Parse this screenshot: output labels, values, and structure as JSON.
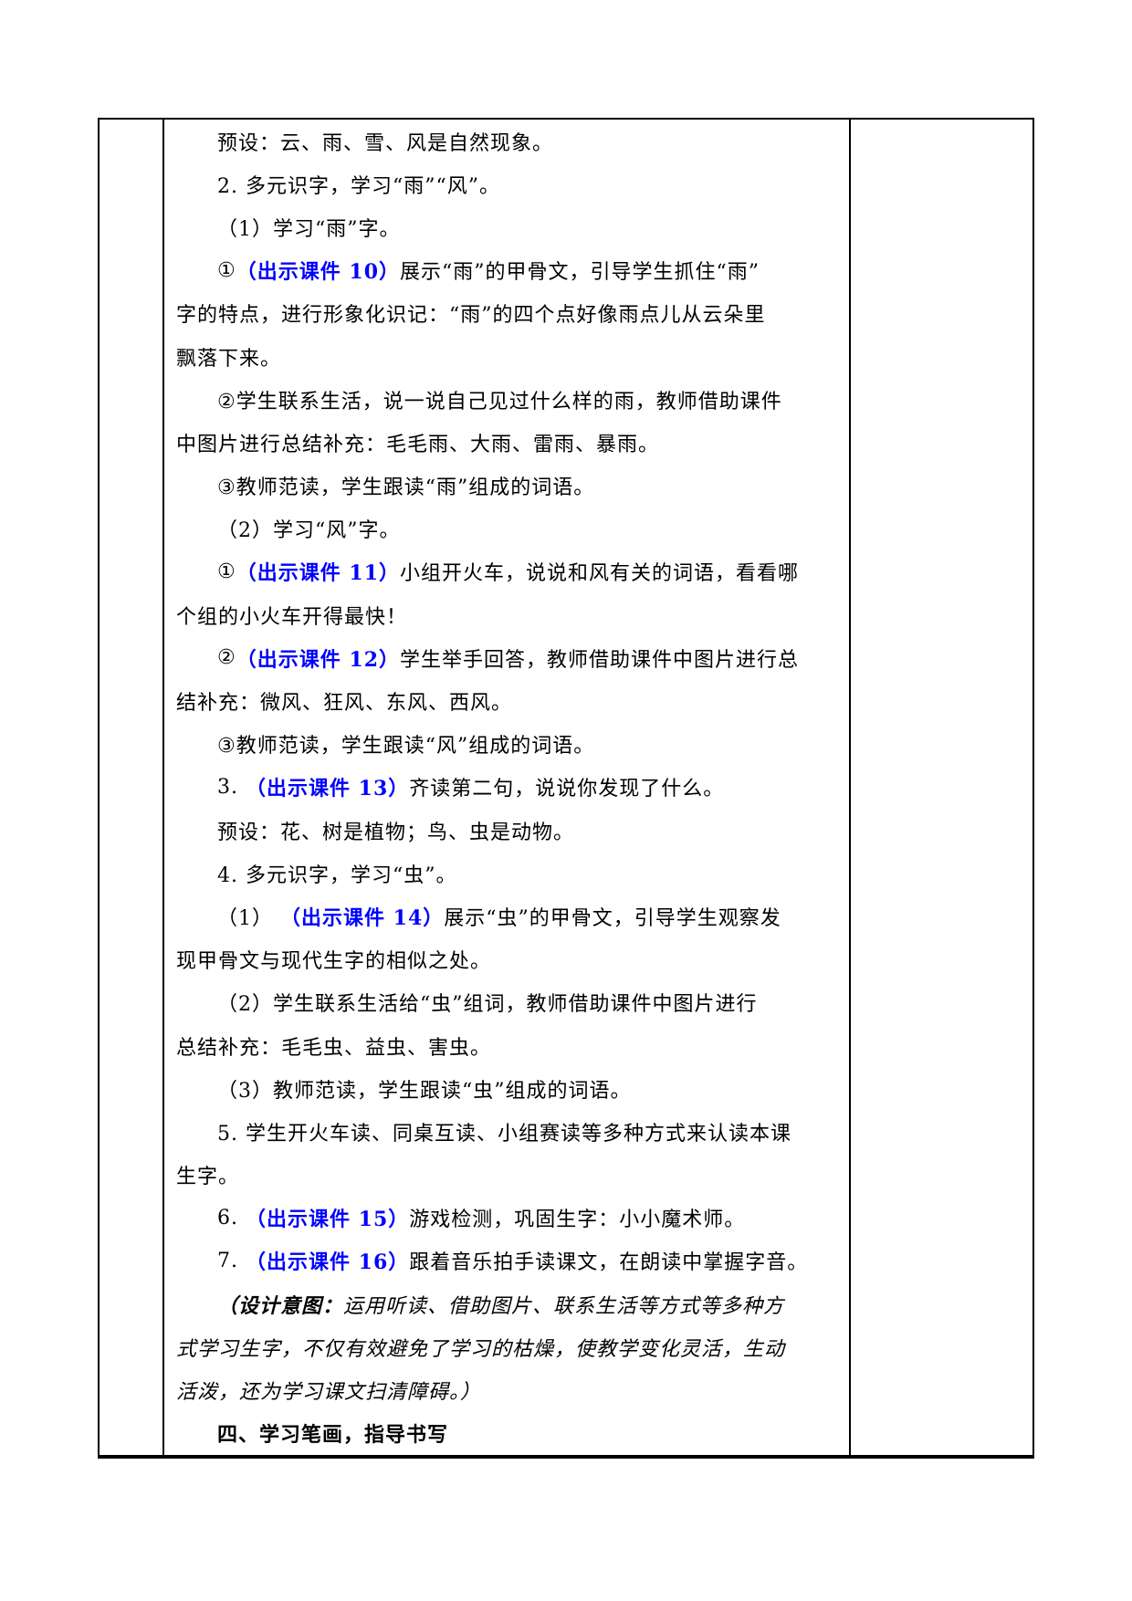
{
  "colors": {
    "page_background": "#ffffff",
    "text": "#000000",
    "accent_blue": "#0000FF",
    "table_border": "#000000"
  },
  "table": {
    "left_column_content": "",
    "right_column_content": "",
    "content_lines": [
      {
        "indent": true,
        "segments": [
          {
            "text": "预设：云、雨、雪、风是自然现象。",
            "style": "normal"
          }
        ]
      },
      {
        "indent": true,
        "segments": [
          {
            "text": "2. 多元识字，学习“雨”“风”。",
            "style": "normal"
          }
        ]
      },
      {
        "indent": true,
        "segments": [
          {
            "text": "（1）学习“雨”字。",
            "style": "normal"
          }
        ]
      },
      {
        "indent": true,
        "segments": [
          {
            "text": "①",
            "style": "normal"
          },
          {
            "text": "（出示课件 10）",
            "style": "blue-bold"
          },
          {
            "text": "展示“雨”的甲骨文，引导学生抓住“雨”",
            "style": "normal"
          }
        ]
      },
      {
        "indent": false,
        "segments": [
          {
            "text": "字的特点，进行形象化识记：“雨”的四个点好像雨点儿从云朵里",
            "style": "normal"
          }
        ]
      },
      {
        "indent": false,
        "segments": [
          {
            "text": "飘落下来。",
            "style": "normal"
          }
        ]
      },
      {
        "indent": true,
        "segments": [
          {
            "text": "②学生联系生活，说一说自己见过什么样的雨，教师借助课件",
            "style": "normal"
          }
        ]
      },
      {
        "indent": false,
        "segments": [
          {
            "text": "中图片进行总结补充：毛毛雨、大雨、雷雨、暴雨。",
            "style": "normal"
          }
        ]
      },
      {
        "indent": true,
        "segments": [
          {
            "text": "③教师范读，学生跟读“雨”组成的词语。",
            "style": "normal"
          }
        ]
      },
      {
        "indent": true,
        "segments": [
          {
            "text": "（2）学习“风”字。",
            "style": "normal"
          }
        ]
      },
      {
        "indent": true,
        "segments": [
          {
            "text": "①",
            "style": "normal"
          },
          {
            "text": "（出示课件 11）",
            "style": "blue-bold"
          },
          {
            "text": "小组开火车，说说和风有关的词语，看看哪",
            "style": "normal"
          }
        ]
      },
      {
        "indent": false,
        "segments": [
          {
            "text": "个组的小火车开得最快！",
            "style": "normal"
          }
        ]
      },
      {
        "indent": true,
        "segments": [
          {
            "text": "②",
            "style": "normal"
          },
          {
            "text": "（出示课件 12）",
            "style": "blue-bold"
          },
          {
            "text": "学生举手回答，教师借助课件中图片进行总",
            "style": "normal"
          }
        ]
      },
      {
        "indent": false,
        "segments": [
          {
            "text": "结补充：微风、狂风、东风、西风。",
            "style": "normal"
          }
        ]
      },
      {
        "indent": true,
        "segments": [
          {
            "text": "③教师范读，学生跟读“风”组成的词语。",
            "style": "normal"
          }
        ]
      },
      {
        "indent": true,
        "segments": [
          {
            "text": "3. ",
            "style": "normal"
          },
          {
            "text": "（出示课件 13）",
            "style": "blue-bold"
          },
          {
            "text": "齐读第二句，说说你发现了什么。",
            "style": "normal"
          }
        ]
      },
      {
        "indent": true,
        "segments": [
          {
            "text": "预设：花、树是植物；鸟、虫是动物。",
            "style": "normal"
          }
        ]
      },
      {
        "indent": true,
        "segments": [
          {
            "text": "4. 多元识字，学习“虫”。",
            "style": "normal"
          }
        ]
      },
      {
        "indent": true,
        "segments": [
          {
            "text": "（1） ",
            "style": "normal"
          },
          {
            "text": "（出示课件 14）",
            "style": "blue-bold"
          },
          {
            "text": "展示“虫”的甲骨文，引导学生观察发",
            "style": "normal"
          }
        ]
      },
      {
        "indent": false,
        "segments": [
          {
            "text": "现甲骨文与现代生字的相似之处。",
            "style": "normal"
          }
        ]
      },
      {
        "indent": true,
        "segments": [
          {
            "text": "（2）学生联系生活给“虫”组词，教师借助课件中图片进行",
            "style": "normal"
          }
        ]
      },
      {
        "indent": false,
        "segments": [
          {
            "text": "总结补充：毛毛虫、益虫、害虫。",
            "style": "normal"
          }
        ]
      },
      {
        "indent": true,
        "segments": [
          {
            "text": "（3）教师范读，学生跟读“虫”组成的词语。",
            "style": "normal"
          }
        ]
      },
      {
        "indent": true,
        "segments": [
          {
            "text": "5. 学生开火车读、同桌互读、小组赛读等多种方式来认读本课",
            "style": "normal"
          }
        ]
      },
      {
        "indent": false,
        "segments": [
          {
            "text": "生字。",
            "style": "normal"
          }
        ]
      },
      {
        "indent": true,
        "segments": [
          {
            "text": "6. ",
            "style": "normal"
          },
          {
            "text": "（出示课件 15）",
            "style": "blue-bold"
          },
          {
            "text": "游戏检测，巩固生字：小小魔术师。",
            "style": "normal"
          }
        ]
      },
      {
        "indent": true,
        "segments": [
          {
            "text": "7. ",
            "style": "normal"
          },
          {
            "text": "（出示课件 16）",
            "style": "blue-bold"
          },
          {
            "text": "跟着音乐拍手读课文，在朗读中掌握字音。",
            "style": "normal"
          }
        ]
      },
      {
        "indent": true,
        "segments": [
          {
            "text": "（设计意图：",
            "style": "kaiti-bold"
          },
          {
            "text": "运用听读、借助图片、联系生活等方式等多种方",
            "style": "kaiti"
          }
        ]
      },
      {
        "indent": false,
        "segments": [
          {
            "text": "式学习生字，不仅有效避免了学习的枯燥，使教学变化灵活，生动",
            "style": "kaiti"
          }
        ]
      },
      {
        "indent": false,
        "segments": [
          {
            "text": "活泼，还为学习课文扫清障碍。）",
            "style": "kaiti"
          }
        ]
      },
      {
        "indent": true,
        "segments": [
          {
            "text": "四、学习笔画，指导书写",
            "style": "bold"
          }
        ]
      }
    ]
  }
}
